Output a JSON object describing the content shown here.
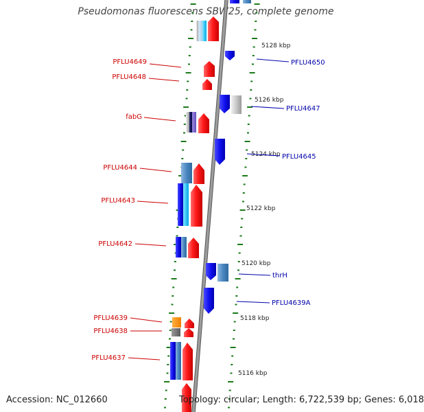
{
  "title": "Pseudomonas fluorescens SBW25, complete genome",
  "footer": {
    "accession": "Accession: NC_012660",
    "summary": "Topology: circular; Length: 6,722,539 bp; Genes: 6,018"
  },
  "colors": {
    "forward_label": "#cc0000",
    "reverse_label": "#0000aa",
    "backbone": "#888888",
    "ticks": "#1a7a1a"
  },
  "scale_labels": [
    {
      "text": "5128 kbp",
      "kbp": 5128
    },
    {
      "text": "5126 kbp",
      "kbp": 5126
    },
    {
      "text": "5124 kbp",
      "kbp": 5124
    },
    {
      "text": "5122 kbp",
      "kbp": 5122
    },
    {
      "text": "5120 kbp",
      "kbp": 5120
    },
    {
      "text": "5118 kbp",
      "kbp": 5118
    },
    {
      "text": "5116 kbp",
      "kbp": 5116
    }
  ],
  "gene_labels_forward": [
    {
      "name": "PFLU4649"
    },
    {
      "name": "PFLU4648"
    },
    {
      "name": "fabG"
    },
    {
      "name": "PFLU4644"
    },
    {
      "name": "PFLU4643"
    },
    {
      "name": "PFLU4642"
    },
    {
      "name": "PFLU4639"
    },
    {
      "name": "PFLU4638"
    },
    {
      "name": "PFLU4637"
    }
  ],
  "gene_labels_reverse": [
    {
      "name": "PFLU4650"
    },
    {
      "name": "PFLU4647"
    },
    {
      "name": "PFLU4645"
    },
    {
      "name": "thrH"
    },
    {
      "name": "PFLU4639A"
    }
  ]
}
